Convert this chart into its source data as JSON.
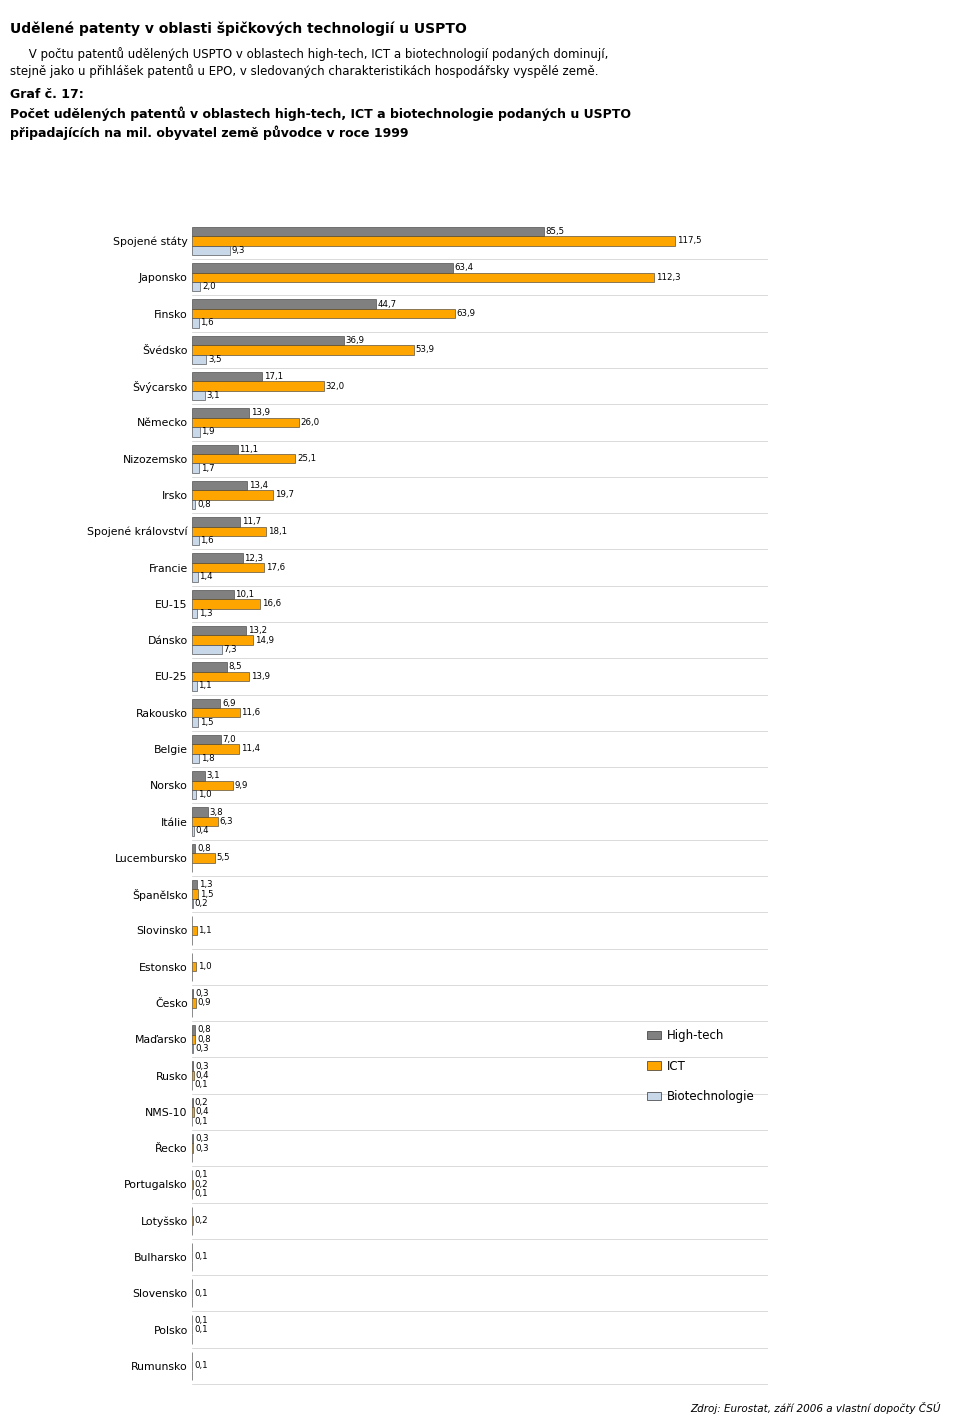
{
  "title_bold": "Udělené patenty v oblasti špičkových technologií u USPTO",
  "subtitle_line1": "     V počtu patentů udělených USPTO v oblastech high-tech, ICT a biotechnologií podaných dominují,",
  "subtitle_line2": "stejně jako u přihlášek patentů u EPO, v sledovaných charakteristikách hospodářsky vyspělé země.",
  "graph_label": "Graf č. 17:",
  "graph_title_line1": "Počet udělených patentů v oblastech high-tech, ICT a biotechnologie podaných u USPTO",
  "graph_title_line2": "připadajících na mil. obyvatel země původce v roce 1999",
  "source": "Zdroj: Eurostat, září 2006 a vlastní dopočty ČSÚ",
  "categories": [
    "Spojené státy",
    "Japonsko",
    "Finsko",
    "Švédsko",
    "Švýcarsko",
    "Německo",
    "Nizozemsko",
    "Irsko",
    "Spojené království",
    "Francie",
    "EU-15",
    "Dánsko",
    "EU-25",
    "Rakousko",
    "Belgie",
    "Norsko",
    "Itálie",
    "Lucembursko",
    "Španělsko",
    "Slovinsko",
    "Estonsko",
    "Česko",
    "Maďarsko",
    "Rusko",
    "NMS-10",
    "Řecko",
    "Portugalsko",
    "Lotyšsko",
    "Bulharsko",
    "Slovensko",
    "Polsko",
    "Rumunsko"
  ],
  "hightech": [
    85.5,
    63.4,
    44.7,
    36.9,
    17.1,
    13.9,
    11.1,
    13.4,
    11.7,
    12.3,
    10.1,
    13.2,
    8.5,
    6.9,
    7.0,
    3.1,
    3.8,
    0.8,
    1.3,
    0.0,
    0.0,
    0.3,
    0.8,
    0.3,
    0.2,
    0.3,
    0.1,
    0.0,
    0.0,
    0.0,
    0.1,
    0.0
  ],
  "ict": [
    117.5,
    112.3,
    63.9,
    53.9,
    32.0,
    26.0,
    25.1,
    19.7,
    18.1,
    17.6,
    16.6,
    14.9,
    13.9,
    11.6,
    11.4,
    9.9,
    6.3,
    5.5,
    1.5,
    1.1,
    1.0,
    0.9,
    0.8,
    0.4,
    0.4,
    0.3,
    0.2,
    0.2,
    0.1,
    0.1,
    0.1,
    0.1
  ],
  "biotech": [
    9.3,
    2.0,
    1.6,
    3.5,
    3.1,
    1.9,
    1.7,
    0.8,
    1.6,
    1.4,
    1.3,
    7.3,
    1.1,
    1.5,
    1.8,
    1.0,
    0.4,
    0.0,
    0.2,
    0.0,
    0.0,
    0.0,
    0.3,
    0.1,
    0.1,
    0.0,
    0.1,
    0.0,
    0.0,
    0.0,
    0.0,
    0.0
  ],
  "color_hightech": "#808080",
  "color_ict": "#FFA500",
  "color_biotech": "#C8D8E8",
  "legend_labels": [
    "High-tech",
    "ICT",
    "Biotechnologie"
  ],
  "fig_width": 9.6,
  "fig_height": 14.25
}
